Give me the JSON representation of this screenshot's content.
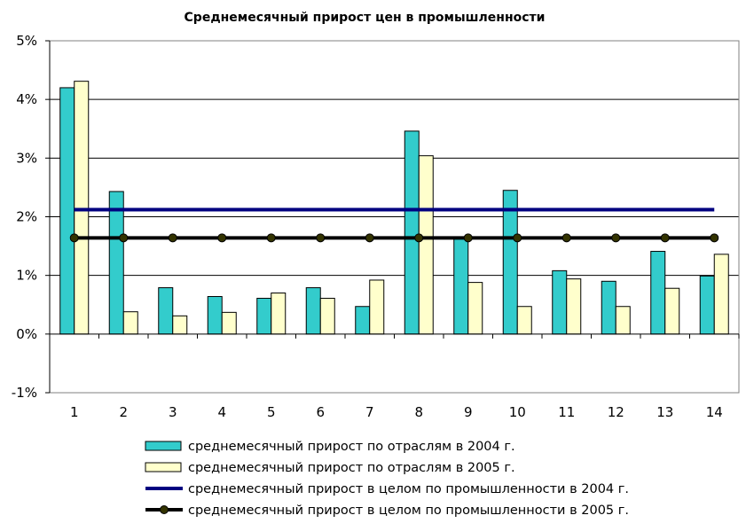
{
  "chart_data": {
    "type": "bar",
    "title": "Среднемесячный прирост цен в промышленности",
    "categories": [
      "1",
      "2",
      "3",
      "4",
      "5",
      "6",
      "7",
      "8",
      "9",
      "10",
      "11",
      "12",
      "13",
      "14"
    ],
    "series": [
      {
        "name": "среднемесячный прирост по отраслям в 2004 г.",
        "kind": "bar",
        "color": "#33CCCC",
        "values": [
          4.2,
          2.43,
          0.79,
          0.64,
          0.61,
          0.79,
          0.47,
          3.46,
          1.62,
          2.45,
          1.08,
          0.9,
          1.41,
          0.99
        ]
      },
      {
        "name": "среднемесячный прирост по отраслям в 2005 г.",
        "kind": "bar",
        "color": "#FFFFCC",
        "values": [
          4.31,
          0.38,
          0.31,
          0.37,
          0.7,
          0.61,
          0.92,
          3.04,
          0.88,
          0.47,
          0.94,
          0.47,
          0.78,
          1.36
        ]
      },
      {
        "name": "среднемесячный прирост в целом по промышленности в 2004 г.",
        "kind": "line",
        "color": "#000080",
        "values": [
          2.12,
          2.12,
          2.12,
          2.12,
          2.12,
          2.12,
          2.12,
          2.12,
          2.12,
          2.12,
          2.12,
          2.12,
          2.12,
          2.12
        ]
      },
      {
        "name": "среднемесячный прирост в целом по промышленности в 2005 г.",
        "kind": "line",
        "color": "#000000",
        "marker_color": "#333300",
        "values": [
          1.64,
          1.64,
          1.64,
          1.64,
          1.64,
          1.64,
          1.64,
          1.64,
          1.64,
          1.64,
          1.64,
          1.64,
          1.64,
          1.64
        ]
      }
    ],
    "ylim": [
      -1,
      5
    ],
    "yticks": [
      -1,
      0,
      1,
      2,
      3,
      4,
      5
    ],
    "ytick_labels": [
      "-1%",
      "0%",
      "1%",
      "2%",
      "3%",
      "4%",
      "5%"
    ],
    "grid": true,
    "legend_position": "bottom"
  }
}
